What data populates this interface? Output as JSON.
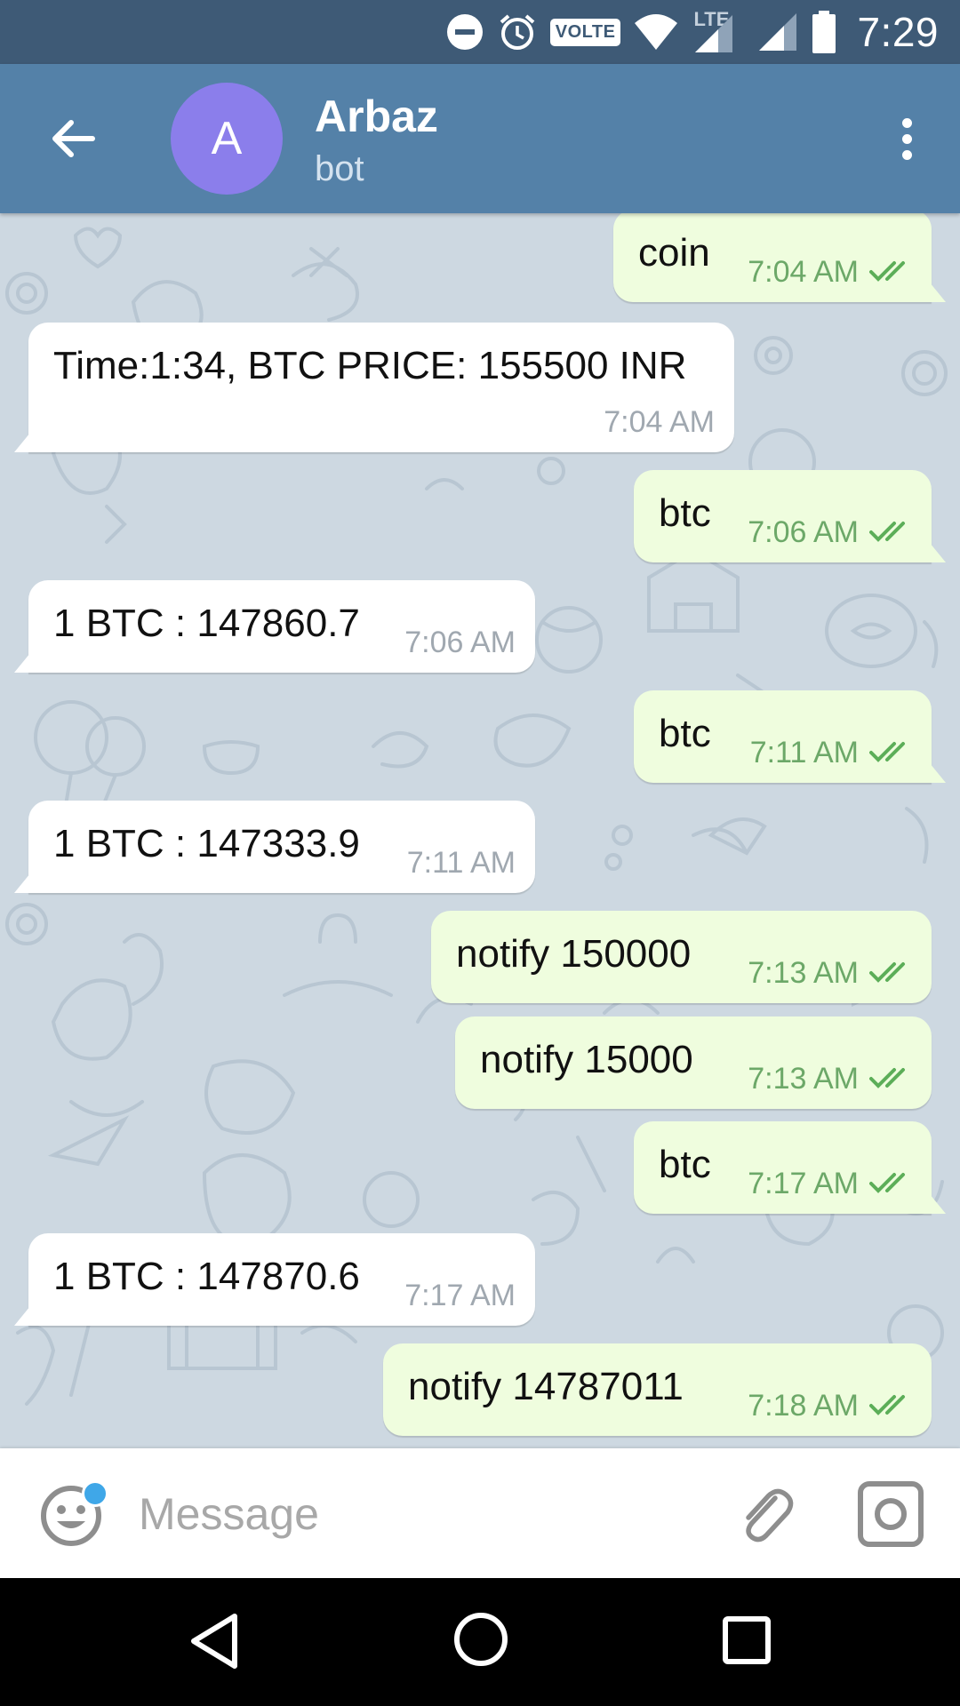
{
  "status_bar": {
    "time": "7:29",
    "volte_label": "VOLTE",
    "network_label": "LTE",
    "icons": [
      "dnd-icon",
      "alarm-icon",
      "volte-icon",
      "wifi-icon",
      "lte-signal-icon",
      "signal-icon",
      "battery-icon"
    ]
  },
  "header": {
    "name": "Arbaz",
    "subtitle": "bot",
    "avatar_letter": "A",
    "avatar_color": "#8b7eeb",
    "back_icon": "arrow-back-icon",
    "menu_icon": "more-vert-icon"
  },
  "messages": [
    {
      "direction": "out",
      "text": "coin",
      "time": "7:04 AM",
      "read": true
    },
    {
      "direction": "in",
      "text": "Time:1:34, BTC PRICE: 155500 INR",
      "time": "7:04 AM"
    },
    {
      "direction": "out",
      "text": "btc",
      "time": "7:06 AM",
      "read": true
    },
    {
      "direction": "in",
      "text": "1 BTC : 147860.7",
      "time": "7:06 AM"
    },
    {
      "direction": "out",
      "text": "btc",
      "time": "7:11 AM",
      "read": true
    },
    {
      "direction": "in",
      "text": "1 BTC : 147333.9",
      "time": "7:11 AM"
    },
    {
      "direction": "out",
      "text": "notify 150000",
      "time": "7:13 AM",
      "read": true
    },
    {
      "direction": "out",
      "text": "notify 15000",
      "time": "7:13 AM",
      "read": true
    },
    {
      "direction": "out",
      "text": "btc",
      "time": "7:17 AM",
      "read": true
    },
    {
      "direction": "in",
      "text": "1 BTC : 147870.6",
      "time": "7:17 AM"
    },
    {
      "direction": "out",
      "text": "notify 14787011",
      "time": "7:18 AM",
      "read": true
    }
  ],
  "input": {
    "placeholder": "Message",
    "value": "",
    "emoji_icon": "emoji-icon",
    "attach_icon": "paperclip-icon",
    "camera_icon": "camera-icon"
  },
  "nav": {
    "icons": [
      "nav-back-icon",
      "nav-home-icon",
      "nav-recents-icon"
    ]
  },
  "colors": {
    "status_bar": "#3e5a76",
    "header": "#5481a8",
    "chat_background": "#cdd8e1",
    "outgoing_bubble": "#effdde",
    "incoming_bubble": "#ffffff",
    "outgoing_time": "#6ca868",
    "incoming_time": "#a0a8b0",
    "emoji_badge": "#3fa7e8"
  }
}
